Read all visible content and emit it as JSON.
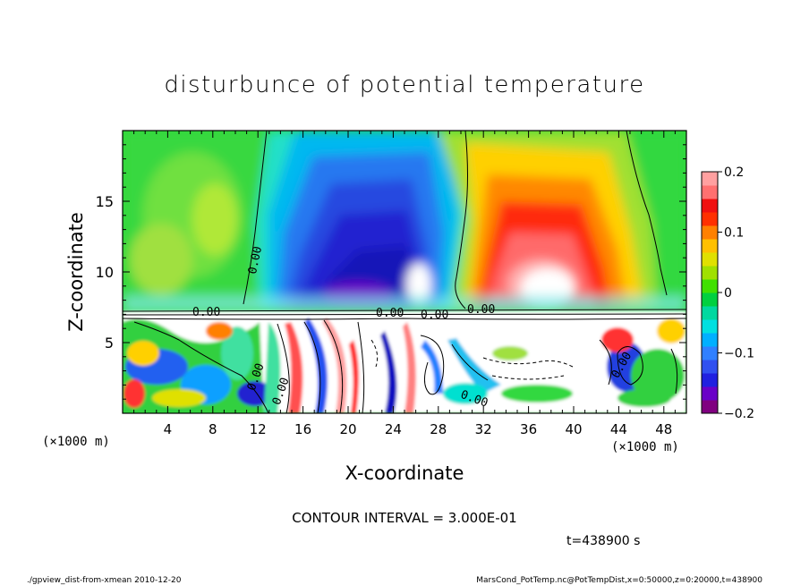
{
  "chart_data": {
    "type": "heatmap",
    "title": "disturbunce of potential temperature",
    "xlabel": "X-coordinate",
    "ylabel": "Z-coordinate",
    "x_unit_left": "(×1000 m)",
    "x_unit_right": "(×1000 m)",
    "xlim": [
      0,
      50
    ],
    "ylim": [
      0,
      20
    ],
    "x_ticks": [
      4,
      8,
      12,
      16,
      20,
      24,
      28,
      32,
      36,
      40,
      44,
      48
    ],
    "y_ticks": [
      5,
      10,
      15
    ],
    "colorbar": {
      "min": -0.2,
      "max": 0.2,
      "ticks": [
        "0.2",
        "0.1",
        "0",
        "−0.1",
        "−0.2"
      ],
      "tick_values": [
        0.2,
        0.1,
        0,
        -0.1,
        -0.2
      ],
      "colors": [
        "#800080",
        "#6a00c8",
        "#2020e0",
        "#3050f0",
        "#3080ff",
        "#00b0ff",
        "#00e0e0",
        "#00d8a0",
        "#00d040",
        "#40e000",
        "#a0e000",
        "#e0e000",
        "#ffc000",
        "#ff8000",
        "#ff3000",
        "#f01010",
        "#ff7070",
        "#ffa0a0"
      ]
    },
    "contour_labels": [
      "0.00",
      "0.00",
      "0.00",
      "0.00",
      "0.00",
      "0.00",
      "0.00",
      "0.00",
      "0.00"
    ],
    "contour_interval_text": "CONTOUR INTERVAL = 3.000E-01",
    "time_text": "t=438900 s"
  },
  "footer": {
    "left": "./gpview_dist-from-xmean  2010-12-20",
    "right": "MarsCond_PotTemp.nc@PotTempDist,x=0:50000,z=0:20000,t=438900"
  }
}
